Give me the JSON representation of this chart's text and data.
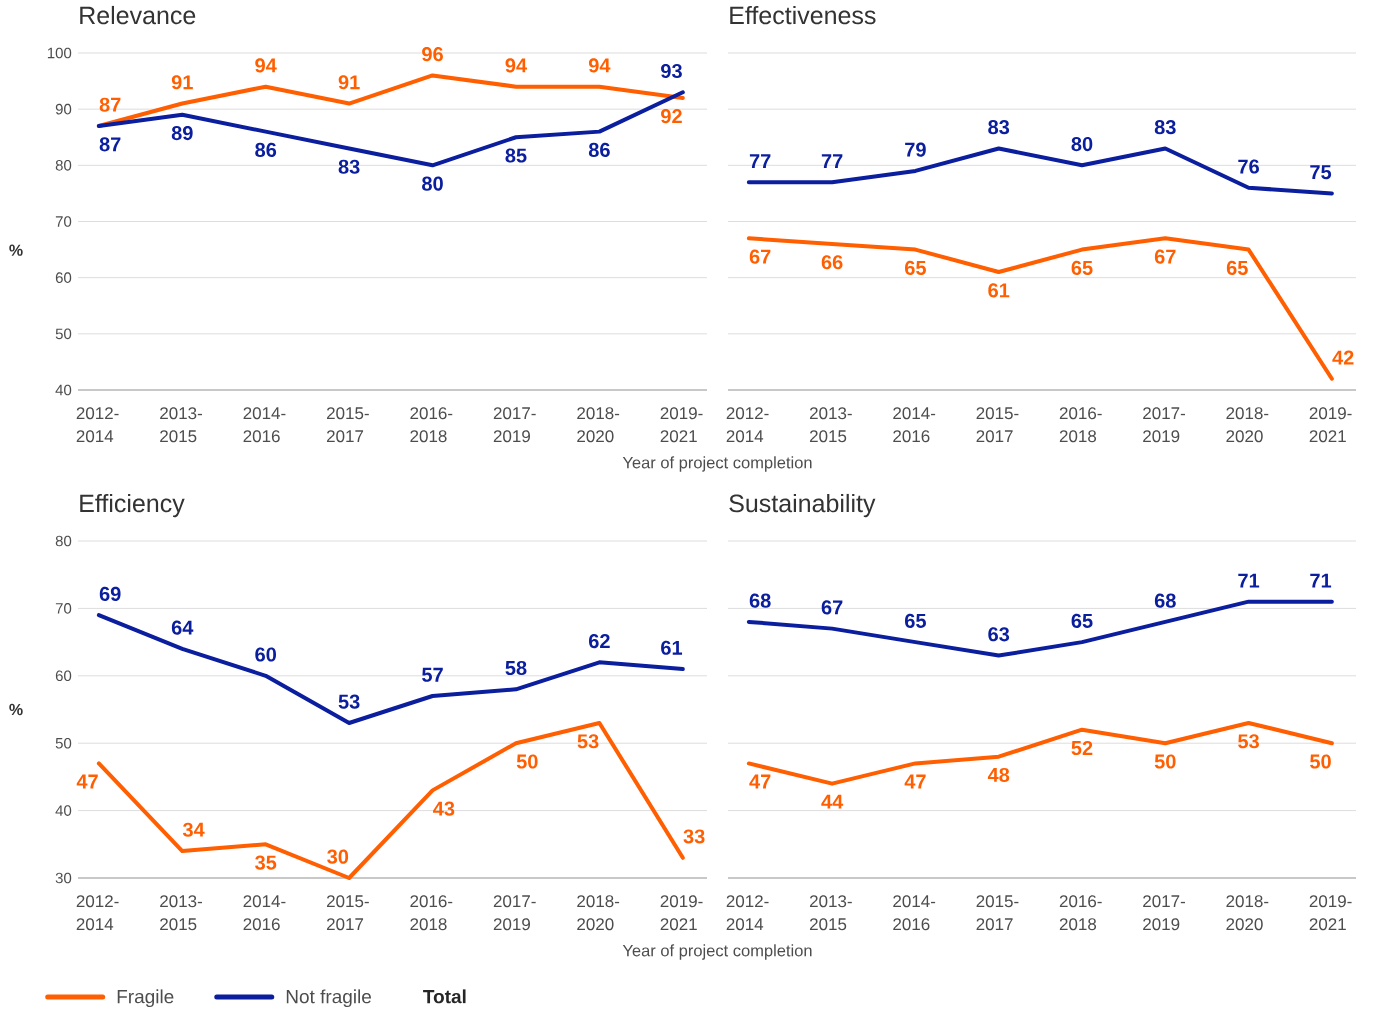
{
  "chart_data": [
    {
      "type": "line",
      "title": "Relevance",
      "ylabel": "%",
      "xlabel": "Year of project completion",
      "categories": [
        "2012-2014",
        "2013-2015",
        "2014-2016",
        "2015-2017",
        "2016-2018",
        "2017-2019",
        "2018-2020",
        "2019-2021"
      ],
      "series": [
        {
          "color": "#ff5f00",
          "values": [
            87,
            91,
            94,
            91,
            96,
            94,
            94,
            92
          ]
        },
        {
          "color": "#0a1e9e",
          "values": [
            87,
            89,
            86,
            83,
            80,
            85,
            86,
            93
          ]
        }
      ],
      "ylim": [
        40,
        100
      ],
      "yticks": [
        40,
        50,
        60,
        70,
        80,
        90,
        100
      ],
      "grid": "y",
      "data_labels": true
    },
    {
      "type": "line",
      "title": "Effectiveness",
      "categories": [
        "2012-2014",
        "2013-2015",
        "2014-2016",
        "2015-2017",
        "2016-2018",
        "2017-2019",
        "2018-2020",
        "2019-2021"
      ],
      "series": [
        {
          "color": "#ff5f00",
          "values": [
            67,
            66,
            65,
            61,
            65,
            67,
            65,
            42
          ]
        },
        {
          "color": "#0a1e9e",
          "values": [
            77,
            77,
            79,
            83,
            80,
            83,
            76,
            75
          ]
        }
      ],
      "ylim": [
        40,
        100
      ],
      "yticks": [
        40,
        50,
        60,
        70,
        80,
        90,
        100
      ],
      "grid": "y",
      "data_labels": true,
      "tick_labels": "x"
    },
    {
      "type": "line",
      "title": "Efficiency",
      "ylabel": "%",
      "xlabel": "Year of project completion",
      "categories": [
        "2012-2014",
        "2013-2015",
        "2014-2016",
        "2015-2017",
        "2016-2018",
        "2017-2019",
        "2018-2020",
        "2019-2021"
      ],
      "series": [
        {
          "name": "Fragile",
          "color": "#ff5f00",
          "values": [
            47,
            34,
            35,
            30,
            43,
            50,
            53,
            33
          ]
        },
        {
          "name": "Not fragile",
          "color": "#0a1e9e",
          "values": [
            69,
            64,
            60,
            53,
            57,
            58,
            62,
            61
          ]
        }
      ],
      "ylim": [
        30,
        80
      ],
      "yticks": [
        30,
        40,
        50,
        60,
        70,
        80
      ],
      "grid": "y",
      "data_labels": true,
      "legend": "bottom left",
      "annotations": [
        "Total"
      ]
    },
    {
      "type": "line",
      "title": "Sustainability",
      "categories": [
        "2012-2014",
        "2013-2015",
        "2014-2016",
        "2015-2017",
        "2016-2018",
        "2017-2019",
        "2018-2020",
        "2019-2021"
      ],
      "series": [
        {
          "color": "#ff5f00",
          "values": [
            47,
            44,
            47,
            48,
            52,
            50,
            53,
            50
          ]
        },
        {
          "color": "#0a1e9e",
          "values": [
            68,
            67,
            65,
            63,
            65,
            68,
            71,
            71
          ]
        }
      ],
      "ylim": [
        30,
        80
      ],
      "yticks": [
        30,
        40,
        50,
        60,
        70,
        80
      ],
      "grid": "y",
      "data_labels": true,
      "tick_labels": "x"
    }
  ]
}
